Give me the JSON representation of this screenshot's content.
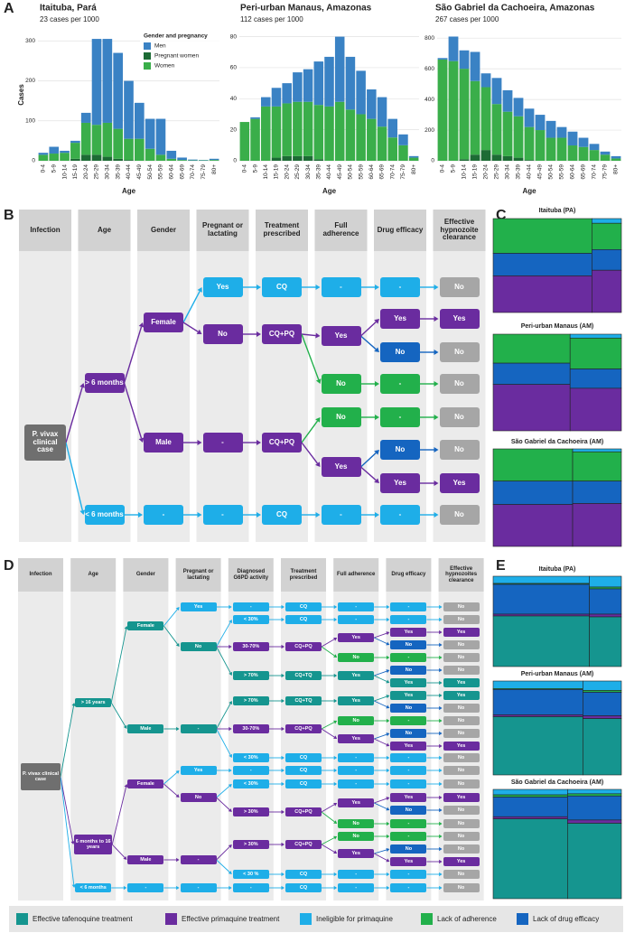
{
  "panel_labels": [
    "A",
    "B",
    "C",
    "D",
    "E"
  ],
  "chart_data": [
    {
      "type": "bar",
      "title": "Itaituba, Pará",
      "subtitle": "23 cases per 1000",
      "y_label": "Cases",
      "x_label": "Age",
      "legend_title": "Gender and pregnancy",
      "categories": [
        "0-4",
        "5-9",
        "10-14",
        "15-19",
        "20-24",
        "25-29",
        "30-34",
        "35-39",
        "40-44",
        "45-49",
        "50-54",
        "55-59",
        "60-64",
        "65-69",
        "70-74",
        "75-79",
        "80+"
      ],
      "series": [
        {
          "name": "Men",
          "color": "#3a82c4",
          "values": [
            5,
            17,
            5,
            5,
            25,
            215,
            210,
            190,
            145,
            90,
            75,
            90,
            20,
            6,
            2,
            1,
            3
          ]
        },
        {
          "name": "Pregnant women",
          "color": "#1d6b35",
          "values": [
            0,
            0,
            0,
            5,
            15,
            15,
            10,
            5,
            2,
            0,
            0,
            0,
            0,
            0,
            0,
            0,
            0
          ]
        },
        {
          "name": "Women",
          "color": "#3aae4a",
          "values": [
            15,
            18,
            20,
            40,
            80,
            75,
            85,
            75,
            53,
            55,
            30,
            15,
            5,
            2,
            1,
            1,
            2
          ]
        }
      ],
      "ylim": [
        0,
        330
      ],
      "yticks": [
        0,
        100,
        200,
        300
      ]
    },
    {
      "type": "bar",
      "title": "Peri-urban Manaus, Amazonas",
      "subtitle": "112 cases per 1000",
      "x_label": "Age",
      "categories": [
        "0-4",
        "5-9",
        "10-14",
        "15-19",
        "20-24",
        "25-29",
        "30-34",
        "35-39",
        "40-44",
        "45-49",
        "50-54",
        "55-59",
        "60-64",
        "65-69",
        "70-74",
        "75-79",
        "80+"
      ],
      "series": [
        {
          "color": "#3a82c4",
          "values": [
            0,
            1,
            6,
            12,
            13,
            19,
            21,
            28,
            32,
            42,
            34,
            28,
            19,
            19,
            12,
            7,
            1
          ]
        },
        {
          "color": "#1d6b35",
          "values": [
            0,
            0,
            0,
            2,
            3,
            3,
            3,
            1,
            0,
            0,
            0,
            0,
            0,
            0,
            0,
            0,
            0
          ]
        },
        {
          "color": "#3aae4a",
          "values": [
            25,
            27,
            35,
            33,
            34,
            35,
            35,
            35,
            35,
            38,
            33,
            30,
            27,
            22,
            15,
            10,
            2
          ]
        }
      ],
      "ylim": [
        0,
        85
      ],
      "yticks": [
        0,
        20,
        40,
        60,
        80
      ]
    },
    {
      "type": "bar",
      "title": "São Gabriel da Cachoeira, Amazonas",
      "subtitle": "267 cases per 1000",
      "x_label": "Age",
      "categories": [
        "0-4",
        "5-9",
        "10-14",
        "15-19",
        "20-24",
        "25-29",
        "30-34",
        "35-39",
        "40-44",
        "45-49",
        "50-54",
        "55-59",
        "60-64",
        "65-69",
        "70-74",
        "75-79",
        "80+"
      ],
      "series": [
        {
          "color": "#3a82c4",
          "values": [
            10,
            160,
            120,
            190,
            90,
            170,
            140,
            120,
            120,
            100,
            110,
            70,
            90,
            60,
            40,
            20,
            15
          ]
        },
        {
          "color": "#1d6b35",
          "values": [
            0,
            0,
            10,
            40,
            70,
            40,
            30,
            20,
            5,
            0,
            0,
            0,
            0,
            0,
            0,
            0,
            0
          ]
        },
        {
          "color": "#3aae4a",
          "values": [
            660,
            650,
            590,
            480,
            410,
            330,
            290,
            270,
            215,
            200,
            150,
            150,
            100,
            90,
            70,
            40,
            15
          ]
        }
      ],
      "ylim": [
        0,
        860
      ],
      "yticks": [
        0,
        200,
        400,
        600,
        800
      ]
    },
    {
      "type": "mosaic",
      "title": "Itaituba (PA)",
      "colors": [
        "#1eaee8",
        "#22b04b",
        "#1565c0",
        "#6a2c9f"
      ],
      "columns": [
        {
          "width": 77,
          "values": [
            0,
            37,
            24,
            39
          ]
        },
        {
          "width": 23,
          "values": [
            5,
            28,
            22,
            45
          ]
        }
      ]
    },
    {
      "type": "mosaic",
      "title": "Peri-urban Manaus (AM)",
      "colors": [
        "#1eaee8",
        "#22b04b",
        "#1565c0",
        "#6a2c9f"
      ],
      "columns": [
        {
          "width": 60,
          "values": [
            0,
            30,
            22,
            48
          ]
        },
        {
          "width": 40,
          "values": [
            4,
            32,
            20,
            44
          ]
        }
      ]
    },
    {
      "type": "mosaic",
      "title": "São Gabriel da Cachoeira (AM)",
      "colors": [
        "#1eaee8",
        "#22b04b",
        "#1565c0",
        "#6a2c9f"
      ],
      "columns": [
        {
          "width": 62,
          "values": [
            0,
            33,
            24,
            43
          ]
        },
        {
          "width": 38,
          "values": [
            3,
            30,
            23,
            44
          ]
        }
      ]
    },
    {
      "type": "mosaic",
      "title": "Itaituba (PA)",
      "colors": [
        "#1eaee8",
        "#22b04b",
        "#1565c0",
        "#6a2c9f",
        "#15958f"
      ],
      "columns": [
        {
          "width": 75,
          "values": [
            8,
            1,
            33,
            2,
            56
          ]
        },
        {
          "width": 25,
          "values": [
            12,
            2,
            28,
            3,
            55
          ]
        }
      ]
    },
    {
      "type": "mosaic",
      "title": "Peri-urban Manaus (AM)",
      "colors": [
        "#1eaee8",
        "#22b04b",
        "#1565c0",
        "#6a2c9f",
        "#15958f"
      ],
      "columns": [
        {
          "width": 70,
          "values": [
            8,
            1,
            27,
            2,
            62
          ]
        },
        {
          "width": 30,
          "values": [
            10,
            2,
            25,
            3,
            60
          ]
        }
      ]
    },
    {
      "type": "mosaic",
      "title": "São Gabriel da Cachoeira (AM)",
      "colors": [
        "#1eaee8",
        "#22b04b",
        "#1565c0",
        "#6a2c9f",
        "#15958f"
      ],
      "columns": [
        {
          "width": 58,
          "values": [
            5,
            2,
            18,
            2,
            73
          ]
        },
        {
          "width": 42,
          "values": [
            4,
            2,
            22,
            3,
            69
          ]
        }
      ]
    }
  ],
  "tree_b": {
    "columns": [
      "Infection",
      "Age",
      "Gender",
      "Pregnant or lactating",
      "Treatment prescribed",
      "Full adherence",
      "Drug efficacy",
      "Effective hypnozoite clearance"
    ],
    "nodes": [
      {
        "label": "P. vivax clinical case",
        "color": "#6f6f6f"
      },
      {
        "label": "> 6 months",
        "color": "#6a2c9f"
      },
      {
        "label": "< 6 months",
        "color": "#1eaee8"
      },
      {
        "label": "Female",
        "color": "#6a2c9f"
      },
      {
        "label": "Male",
        "color": "#6a2c9f"
      },
      {
        "label": "-",
        "color": "#1eaee8"
      },
      {
        "label": "Yes",
        "color": "#1eaee8"
      },
      {
        "label": "No",
        "color": "#6a2c9f"
      },
      {
        "label": "-",
        "color": "#6a2c9f"
      },
      {
        "label": "-",
        "color": "#1eaee8"
      },
      {
        "label": "CQ",
        "color": "#1eaee8"
      },
      {
        "label": "CQ+PQ",
        "color": "#6a2c9f"
      },
      {
        "label": "CQ+PQ",
        "color": "#6a2c9f"
      },
      {
        "label": "CQ",
        "color": "#1eaee8"
      },
      {
        "label": "-",
        "color": "#1eaee8"
      },
      {
        "label": "Yes",
        "color": "#6a2c9f"
      },
      {
        "label": "No",
        "color": "#22b04b"
      },
      {
        "label": "No",
        "color": "#22b04b"
      },
      {
        "label": "Yes",
        "color": "#6a2c9f"
      },
      {
        "label": "-",
        "color": "#1eaee8"
      },
      {
        "label": "-",
        "color": "#1eaee8"
      },
      {
        "label": "Yes",
        "color": "#6a2c9f"
      },
      {
        "label": "No",
        "color": "#1565c0"
      },
      {
        "label": "-",
        "color": "#22b04b"
      },
      {
        "label": "-",
        "color": "#22b04b"
      },
      {
        "label": "No",
        "color": "#1565c0"
      },
      {
        "label": "Yes",
        "color": "#6a2c9f"
      },
      {
        "label": "-",
        "color": "#1eaee8"
      },
      {
        "label": "No",
        "color": "#a6a6a6"
      },
      {
        "label": "Yes",
        "color": "#6a2c9f"
      },
      {
        "label": "No",
        "color": "#a6a6a6"
      },
      {
        "label": "No",
        "color": "#a6a6a6"
      },
      {
        "label": "No",
        "color": "#a6a6a6"
      },
      {
        "label": "No",
        "color": "#a6a6a6"
      },
      {
        "label": "Yes",
        "color": "#6a2c9f"
      },
      {
        "label": "No",
        "color": "#a6a6a6"
      }
    ]
  },
  "tree_d": {
    "columns": [
      "Infection",
      "Age",
      "Gender",
      "Pregnant or lactating",
      "Diagnosed G6PD activity",
      "Treatment prescribed",
      "Full adherence",
      "Drug efficacy",
      "Effective hypnozoites clearance"
    ],
    "nodes": [
      {
        "label": "P. vivax clinical case",
        "color": "#6f6f6f"
      },
      {
        "label": "> 16 years",
        "color": "#15958f"
      },
      {
        "label": "6 months to 16 years",
        "color": "#6a2c9f"
      },
      {
        "label": "< 6 months",
        "color": "#1eaee8"
      },
      {
        "label": "Female",
        "color": "#15958f"
      },
      {
        "label": "Male",
        "color": "#15958f"
      },
      {
        "label": "Female",
        "color": "#6a2c9f"
      },
      {
        "label": "Male",
        "color": "#6a2c9f"
      },
      {
        "label": "-",
        "color": "#1eaee8"
      },
      {
        "label": "Yes",
        "color": "#1eaee8"
      },
      {
        "label": "No",
        "color": "#15958f"
      },
      {
        "label": "-",
        "color": "#15958f"
      },
      {
        "label": "Yes",
        "color": "#1eaee8"
      },
      {
        "label": "No",
        "color": "#6a2c9f"
      },
      {
        "label": "-",
        "color": "#6a2c9f"
      },
      {
        "label": "-",
        "color": "#1eaee8"
      },
      {
        "label": "-",
        "color": "#1eaee8"
      },
      {
        "label": "< 30%",
        "color": "#1eaee8"
      },
      {
        "label": "30-70%",
        "color": "#6a2c9f"
      },
      {
        "label": "> 70%",
        "color": "#15958f"
      },
      {
        "label": "> 70%",
        "color": "#15958f"
      },
      {
        "label": "30-70%",
        "color": "#6a2c9f"
      },
      {
        "label": "< 30%",
        "color": "#1eaee8"
      },
      {
        "label": "-",
        "color": "#1eaee8"
      },
      {
        "label": "< 30%",
        "color": "#1eaee8"
      },
      {
        "label": "> 30%",
        "color": "#6a2c9f"
      },
      {
        "label": "> 30%",
        "color": "#6a2c9f"
      },
      {
        "label": "< 30 %",
        "color": "#1eaee8"
      },
      {
        "label": "-",
        "color": "#1eaee8"
      },
      {
        "label": "CQ",
        "color": "#1eaee8"
      },
      {
        "label": "CQ",
        "color": "#1eaee8"
      },
      {
        "label": "CQ+PQ",
        "color": "#6a2c9f"
      },
      {
        "label": "CQ+TQ",
        "color": "#15958f"
      },
      {
        "label": "CQ+TQ",
        "color": "#15958f"
      },
      {
        "label": "CQ+PQ",
        "color": "#6a2c9f"
      },
      {
        "label": "CQ",
        "color": "#1eaee8"
      },
      {
        "label": "CQ",
        "color": "#1eaee8"
      },
      {
        "label": "CQ",
        "color": "#1eaee8"
      },
      {
        "label": "CQ+PQ",
        "color": "#6a2c9f"
      },
      {
        "label": "CQ+PQ",
        "color": "#6a2c9f"
      },
      {
        "label": "CQ",
        "color": "#1eaee8"
      },
      {
        "label": "CQ",
        "color": "#1eaee8"
      },
      {
        "label": "-",
        "color": "#1eaee8"
      },
      {
        "label": "-",
        "color": "#1eaee8"
      },
      {
        "label": "Yes",
        "color": "#6a2c9f"
      },
      {
        "label": "No",
        "color": "#22b04b"
      },
      {
        "label": "Yes",
        "color": "#15958f"
      },
      {
        "label": "Yes",
        "color": "#15958f"
      },
      {
        "label": "No",
        "color": "#22b04b"
      },
      {
        "label": "Yes",
        "color": "#6a2c9f"
      },
      {
        "label": "-",
        "color": "#1eaee8"
      },
      {
        "label": "-",
        "color": "#1eaee8"
      },
      {
        "label": "-",
        "color": "#1eaee8"
      },
      {
        "label": "Yes",
        "color": "#6a2c9f"
      },
      {
        "label": "No",
        "color": "#22b04b"
      },
      {
        "label": "No",
        "color": "#22b04b"
      },
      {
        "label": "Yes",
        "color": "#6a2c9f"
      },
      {
        "label": "-",
        "color": "#1eaee8"
      },
      {
        "label": "-",
        "color": "#1eaee8"
      },
      {
        "label": "-",
        "color": "#1eaee8"
      },
      {
        "label": "-",
        "color": "#1eaee8"
      },
      {
        "label": "Yes",
        "color": "#6a2c9f"
      },
      {
        "label": "No",
        "color": "#1565c0"
      },
      {
        "label": "-",
        "color": "#22b04b"
      },
      {
        "label": "No",
        "color": "#1565c0"
      },
      {
        "label": "Yes",
        "color": "#15958f"
      },
      {
        "label": "Yes",
        "color": "#15958f"
      },
      {
        "label": "No",
        "color": "#1565c0"
      },
      {
        "label": "-",
        "color": "#22b04b"
      },
      {
        "label": "No",
        "color": "#1565c0"
      },
      {
        "label": "Yes",
        "color": "#6a2c9f"
      },
      {
        "label": "-",
        "color": "#1eaee8"
      },
      {
        "label": "-",
        "color": "#1eaee8"
      },
      {
        "label": "-",
        "color": "#1eaee8"
      },
      {
        "label": "Yes",
        "color": "#6a2c9f"
      },
      {
        "label": "No",
        "color": "#1565c0"
      },
      {
        "label": "-",
        "color": "#22b04b"
      },
      {
        "label": "-",
        "color": "#22b04b"
      },
      {
        "label": "No",
        "color": "#1565c0"
      },
      {
        "label": "Yes",
        "color": "#6a2c9f"
      },
      {
        "label": "-",
        "color": "#1eaee8"
      },
      {
        "label": "-",
        "color": "#1eaee8"
      },
      {
        "label": "No",
        "color": "#a6a6a6"
      },
      {
        "label": "No",
        "color": "#a6a6a6"
      },
      {
        "label": "Yes",
        "color": "#6a2c9f"
      },
      {
        "label": "No",
        "color": "#a6a6a6"
      },
      {
        "label": "No",
        "color": "#a6a6a6"
      },
      {
        "label": "No",
        "color": "#a6a6a6"
      },
      {
        "label": "Yes",
        "color": "#15958f"
      },
      {
        "label": "Yes",
        "color": "#15958f"
      },
      {
        "label": "No",
        "color": "#a6a6a6"
      },
      {
        "label": "No",
        "color": "#a6a6a6"
      },
      {
        "label": "No",
        "color": "#a6a6a6"
      },
      {
        "label": "Yes",
        "color": "#6a2c9f"
      },
      {
        "label": "No",
        "color": "#a6a6a6"
      },
      {
        "label": "No",
        "color": "#a6a6a6"
      },
      {
        "label": "No",
        "color": "#a6a6a6"
      },
      {
        "label": "Yes",
        "color": "#6a2c9f"
      },
      {
        "label": "No",
        "color": "#a6a6a6"
      },
      {
        "label": "No",
        "color": "#a6a6a6"
      },
      {
        "label": "No",
        "color": "#a6a6a6"
      },
      {
        "label": "No",
        "color": "#a6a6a6"
      },
      {
        "label": "Yes",
        "color": "#6a2c9f"
      },
      {
        "label": "No",
        "color": "#a6a6a6"
      },
      {
        "label": "No",
        "color": "#a6a6a6"
      }
    ]
  },
  "legend": [
    {
      "label": "Effective tafenoquine treatment",
      "color": "#15958f"
    },
    {
      "label": "Effective primaquine treatment",
      "color": "#6a2c9f"
    },
    {
      "label": "Ineligible for primaquine",
      "color": "#1eaee8"
    },
    {
      "label": "Lack of adherence",
      "color": "#22b04b"
    },
    {
      "label": "Lack of drug efficacy",
      "color": "#1565c0"
    }
  ]
}
